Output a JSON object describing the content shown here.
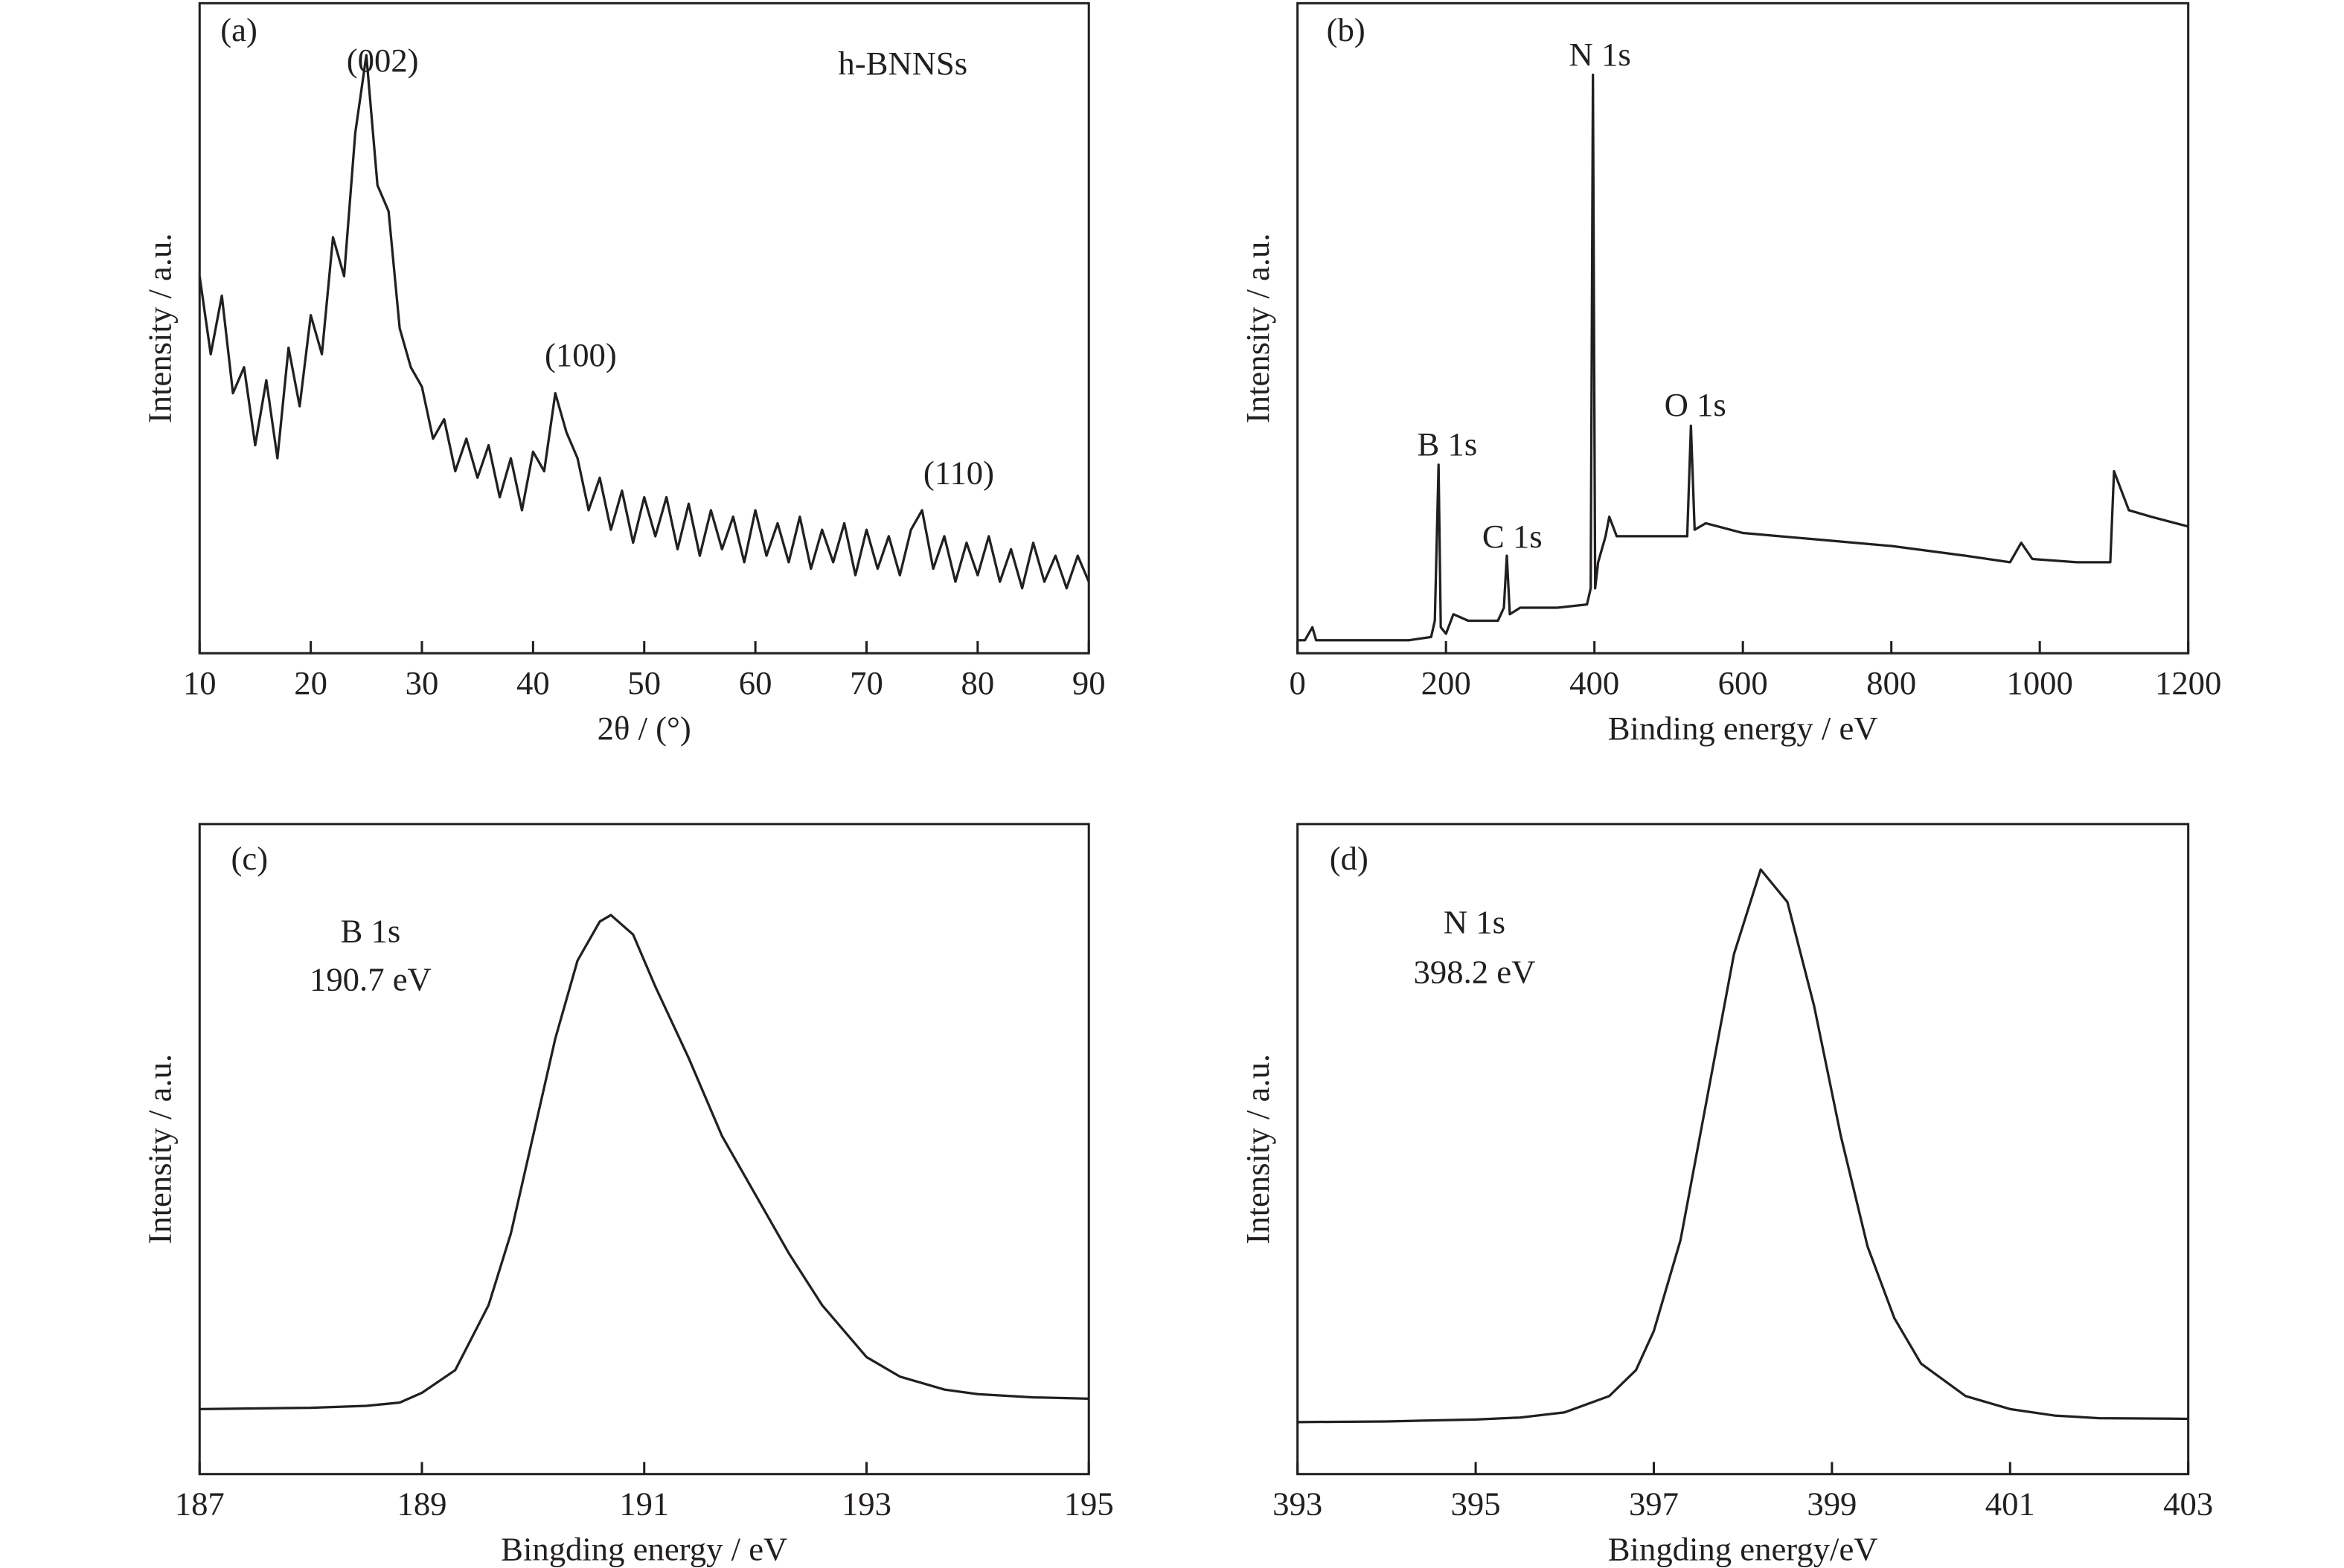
{
  "chart_data": [
    {
      "type": "line",
      "panel_label": "(a)",
      "x_label": "2θ / (°)",
      "y_label": "Intensity / a.u.",
      "annotations": [
        "(002)",
        "(100)",
        "(110)",
        "h-BNNSs"
      ],
      "xlim": [
        10,
        90
      ],
      "xticks": [
        10,
        20,
        30,
        40,
        50,
        60,
        70,
        80,
        90
      ],
      "ylim": [
        0,
        100
      ],
      "color": "#231f20",
      "x": [
        10,
        11,
        12,
        13,
        14,
        15,
        16,
        17,
        18,
        19,
        20,
        21,
        22,
        23,
        24,
        25,
        26,
        27,
        28,
        29,
        30,
        31,
        32,
        33,
        34,
        35,
        36,
        37,
        38,
        39,
        40,
        41,
        42,
        43,
        44,
        45,
        46,
        47,
        48,
        49,
        50,
        51,
        52,
        53,
        54,
        55,
        56,
        57,
        58,
        59,
        60,
        61,
        62,
        63,
        64,
        65,
        66,
        67,
        68,
        69,
        70,
        71,
        72,
        73,
        74,
        75,
        76,
        77,
        78,
        79,
        80,
        81,
        82,
        83,
        84,
        85,
        86,
        87,
        88,
        89,
        90
      ],
      "values": [
        58,
        46,
        55,
        40,
        44,
        32,
        42,
        30,
        47,
        38,
        52,
        46,
        64,
        58,
        80,
        92,
        72,
        68,
        50,
        44,
        41,
        33,
        36,
        28,
        33,
        27,
        32,
        24,
        30,
        22,
        31,
        28,
        40,
        34,
        30,
        22,
        27,
        19,
        25,
        17,
        24,
        18,
        24,
        16,
        23,
        15,
        22,
        16,
        21,
        14,
        22,
        15,
        20,
        14,
        21,
        13,
        19,
        14,
        20,
        12,
        19,
        13,
        18,
        12,
        19,
        22,
        13,
        18,
        11,
        17,
        12,
        18,
        11,
        16,
        10,
        17,
        11,
        15,
        10,
        15,
        11
      ]
    },
    {
      "type": "line",
      "panel_label": "(b)",
      "x_label": "Binding energy / eV",
      "y_label": "Intensity / a.u.",
      "annotations": [
        "N 1s",
        "B 1s",
        "C 1s",
        "O 1s"
      ],
      "xlim": [
        0,
        1200
      ],
      "xticks": [
        0,
        200,
        400,
        600,
        800,
        1000,
        1200
      ],
      "ylim": [
        0,
        100
      ],
      "color": "#231f20",
      "x": [
        0,
        10,
        20,
        25,
        50,
        100,
        150,
        180,
        185,
        190,
        193,
        200,
        210,
        230,
        270,
        278,
        282,
        286,
        300,
        350,
        390,
        395,
        398,
        401,
        405,
        415,
        420,
        430,
        500,
        525,
        530,
        535,
        550,
        600,
        700,
        800,
        900,
        960,
        975,
        990,
        1050,
        1095,
        1100,
        1120,
        1150,
        1200
      ],
      "values": [
        2,
        2,
        4,
        2,
        2,
        2,
        2,
        2.5,
        5,
        29,
        4,
        3,
        6,
        5,
        5,
        7,
        15,
        6,
        7,
        7,
        7.5,
        10,
        89,
        10,
        14,
        18,
        21,
        18,
        18,
        18,
        35,
        19,
        20,
        18.5,
        17.5,
        16.5,
        15,
        14,
        17,
        14.5,
        14,
        14,
        28,
        22,
        21,
        19.5
      ]
    },
    {
      "type": "line",
      "panel_label": "(c)",
      "x_label": "Bingding energy / eV",
      "y_label": "Intensity / a.u.",
      "annotations": [
        "B 1s",
        "190.7 eV"
      ],
      "xlim": [
        187,
        195
      ],
      "xticks": [
        187,
        189,
        191,
        193,
        195
      ],
      "ylim": [
        0,
        100
      ],
      "color": "#231f20",
      "x": [
        187,
        188,
        188.5,
        188.8,
        189,
        189.3,
        189.6,
        189.8,
        190,
        190.2,
        190.4,
        190.6,
        190.7,
        190.9,
        191.1,
        191.4,
        191.7,
        192,
        192.3,
        192.6,
        193,
        193.3,
        193.7,
        194,
        194.5,
        195
      ],
      "values": [
        10,
        10.2,
        10.5,
        11,
        12.5,
        16,
        26,
        37,
        52,
        67,
        79,
        85,
        86,
        83,
        75,
        64,
        52,
        43,
        34,
        26,
        18,
        15,
        13,
        12.3,
        11.8,
        11.6
      ]
    },
    {
      "type": "line",
      "panel_label": "(d)",
      "x_label": "Bingding energy/eV",
      "y_label": "Intensity / a.u.",
      "annotations": [
        "N 1s",
        "398.2 eV"
      ],
      "xlim": [
        393,
        403
      ],
      "xticks": [
        393,
        395,
        397,
        399,
        401,
        403
      ],
      "ylim": [
        0,
        100
      ],
      "color": "#231f20",
      "x": [
        393,
        394,
        395,
        395.5,
        396,
        396.5,
        396.8,
        397,
        397.3,
        397.6,
        397.9,
        398.2,
        398.5,
        398.8,
        399.1,
        399.4,
        399.7,
        400,
        400.5,
        401,
        401.5,
        402,
        403
      ],
      "values": [
        8,
        8.1,
        8.4,
        8.7,
        9.5,
        12,
        16,
        22,
        36,
        58,
        80,
        93,
        88,
        72,
        52,
        35,
        24,
        17,
        12,
        10,
        9,
        8.6,
        8.5
      ]
    }
  ]
}
